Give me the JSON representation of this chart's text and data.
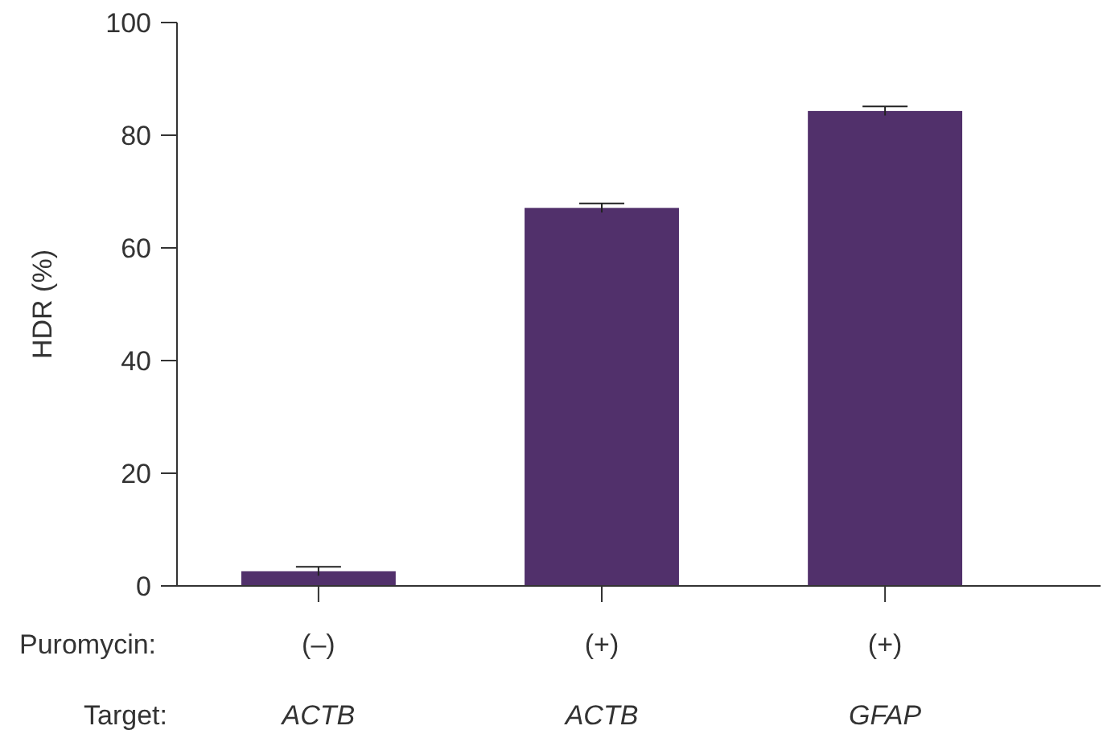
{
  "chart_data": {
    "type": "bar",
    "ylabel": "HDR (%)",
    "categories": [
      "(–)\nACTB",
      "(+)\nACTB",
      "(+)\nGFAP"
    ],
    "values": [
      2.6,
      67.1,
      84.3
    ],
    "errors": [
      0.8,
      0.8,
      0.8
    ],
    "color": "#51306b",
    "ylim": [
      0,
      100
    ],
    "yticks": [
      0,
      20,
      40,
      60,
      80,
      100
    ],
    "grid": false,
    "annotations": [
      "Puromycin:",
      "Target:"
    ]
  }
}
